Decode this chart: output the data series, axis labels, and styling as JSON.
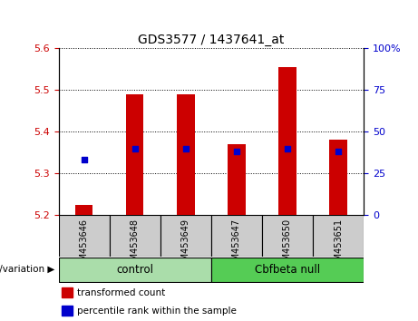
{
  "title": "GDS3577 / 1437641_at",
  "samples": [
    "GSM453646",
    "GSM453648",
    "GSM453649",
    "GSM453647",
    "GSM453650",
    "GSM453651"
  ],
  "transformed_count": [
    5.225,
    5.49,
    5.49,
    5.37,
    5.555,
    5.38
  ],
  "percentile_rank": [
    33,
    40,
    40,
    38,
    40,
    38
  ],
  "y_min": 5.2,
  "y_max": 5.6,
  "y_ticks": [
    5.2,
    5.3,
    5.4,
    5.5,
    5.6
  ],
  "right_y_ticks": [
    0,
    25,
    50,
    75,
    100
  ],
  "right_y_labels": [
    "0",
    "25",
    "50",
    "75",
    "100%"
  ],
  "bar_color": "#cc0000",
  "dot_color": "#0000cc",
  "bar_width": 0.35,
  "baseline": 5.2,
  "groups": [
    {
      "label": "control",
      "indices": [
        0,
        1,
        2
      ],
      "color": "#aaddaa"
    },
    {
      "label": "Cbfbeta null",
      "indices": [
        3,
        4,
        5
      ],
      "color": "#55cc55"
    }
  ],
  "genotype_label": "genotype/variation",
  "legend_items": [
    {
      "label": "transformed count",
      "color": "#cc0000"
    },
    {
      "label": "percentile rank within the sample",
      "color": "#0000cc"
    }
  ],
  "plot_bg": "#ffffff",
  "tick_label_color_left": "#cc0000",
  "tick_label_color_right": "#0000cc",
  "xtick_bg": "#cccccc"
}
